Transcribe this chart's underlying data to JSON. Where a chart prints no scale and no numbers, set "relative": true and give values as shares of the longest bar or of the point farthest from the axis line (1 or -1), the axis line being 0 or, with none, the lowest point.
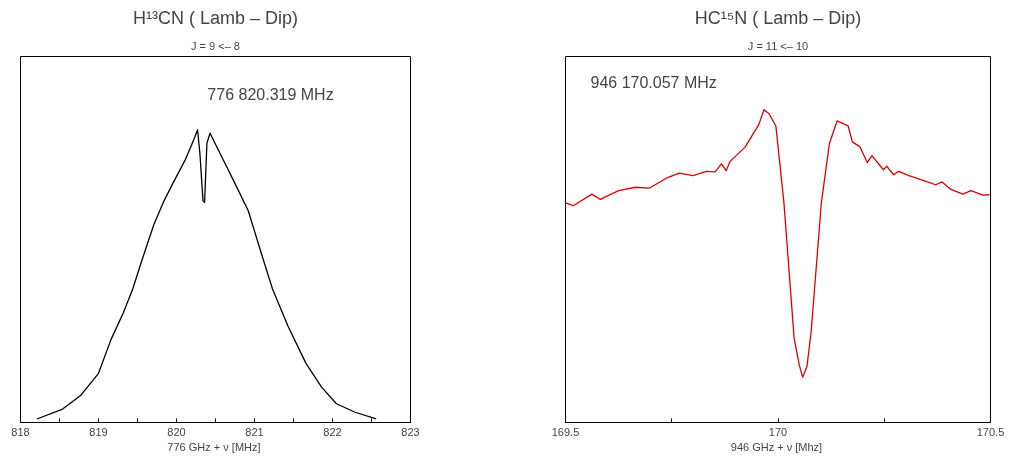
{
  "chart_data": [
    {
      "type": "line",
      "title": "H¹³CN ( Lamb – Dip)",
      "subtitle": "J = 9 <– 8",
      "xlabel": "776 GHz + ν  [MHz]",
      "relative": true,
      "tick_labels": "x",
      "annotations": [
        "776 820.319 MHz"
      ],
      "xlim": [
        818,
        823
      ],
      "xticks": [
        818,
        {
          "value": 818.5,
          "label": null
        },
        819,
        {
          "value": 819.5,
          "label": null
        },
        820,
        {
          "value": 820.5,
          "label": null
        },
        821,
        {
          "value": 821.5,
          "label": null
        },
        822,
        {
          "value": 822.5,
          "label": null
        },
        823
      ],
      "series": [
        {
          "color": "#000000",
          "x": [
            818.21,
            818.54,
            818.77,
            819.0,
            819.16,
            819.32,
            819.44,
            819.55,
            819.71,
            819.84,
            819.95,
            820.11,
            820.22,
            820.27,
            820.3,
            820.34,
            820.36,
            820.39,
            820.43,
            820.57,
            820.73,
            820.92,
            821.08,
            821.23,
            821.43,
            821.66,
            821.86,
            822.05,
            822.29,
            822.56
          ],
          "values": [
            0.012,
            0.046,
            0.092,
            0.168,
            0.283,
            0.376,
            0.457,
            0.549,
            0.676,
            0.757,
            0.815,
            0.896,
            0.965,
            1.0,
            0.919,
            0.757,
            0.751,
            0.954,
            0.988,
            0.913,
            0.827,
            0.723,
            0.584,
            0.457,
            0.329,
            0.202,
            0.121,
            0.064,
            0.035,
            0.012
          ]
        }
      ]
    },
    {
      "type": "line",
      "title": "HC¹⁵N ( Lamb – Dip)",
      "subtitle": "J = 11 <– 10",
      "xlabel": "946 GHz + ν  [Mhz]",
      "relative": true,
      "tick_labels": "x",
      "annotations": [
        "946 170.057 MHz"
      ],
      "xlim": [
        169.5,
        170.5
      ],
      "xticks": [
        169.5,
        {
          "value": 169.75,
          "label": null
        },
        170,
        {
          "value": 170.25,
          "label": null
        },
        170.5
      ],
      "series": [
        {
          "color": "#dd0000",
          "x": [
            169.5,
            169.518,
            169.562,
            169.582,
            169.625,
            169.665,
            169.697,
            169.74,
            169.768,
            169.8,
            169.832,
            169.852,
            169.867,
            169.878,
            169.887,
            169.923,
            169.955,
            169.967,
            169.979,
            169.995,
            170.014,
            170.038,
            170.05,
            170.058,
            170.068,
            170.078,
            170.102,
            170.121,
            170.139,
            170.165,
            170.175,
            170.193,
            170.21,
            170.221,
            170.248,
            170.256,
            170.272,
            170.284,
            170.308,
            170.34,
            170.371,
            170.386,
            170.407,
            170.435,
            170.454,
            170.482,
            170.498
          ],
          "values": [
            0.702,
            0.693,
            0.73,
            0.713,
            0.741,
            0.752,
            0.749,
            0.783,
            0.797,
            0.789,
            0.803,
            0.801,
            0.827,
            0.805,
            0.834,
            0.881,
            0.953,
            1.0,
            0.987,
            0.948,
            0.702,
            0.268,
            0.184,
            0.145,
            0.178,
            0.29,
            0.702,
            0.892,
            0.964,
            0.948,
            0.897,
            0.881,
            0.831,
            0.853,
            0.808,
            0.819,
            0.792,
            0.803,
            0.789,
            0.775,
            0.76,
            0.769,
            0.745,
            0.73,
            0.741,
            0.727,
            0.728
          ]
        }
      ]
    }
  ]
}
